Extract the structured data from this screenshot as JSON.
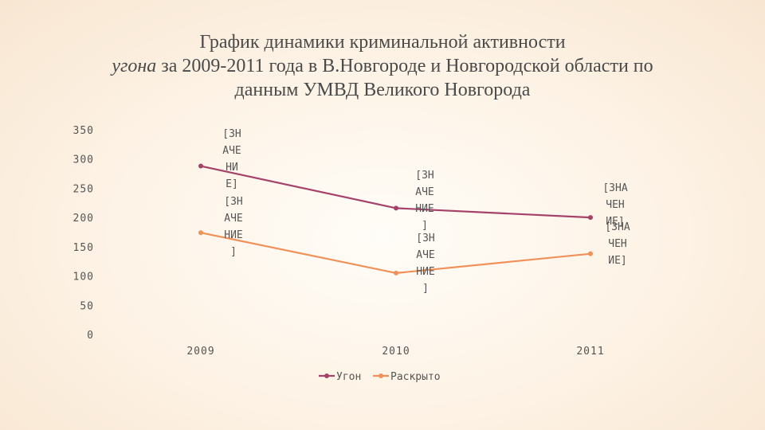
{
  "title": {
    "line1": "График динамики криминальной активности",
    "line2_italic": "угона",
    "line2_rest": " за 2009-2011 года в В.Новгороде и Новгородской области по",
    "line3": "данным УМВД Великого Новгорода"
  },
  "chart_data": {
    "type": "line",
    "categories": [
      "2009",
      "2010",
      "2011"
    ],
    "ylim": [
      0,
      350
    ],
    "yticks": [
      0,
      50,
      100,
      150,
      200,
      250,
      300,
      350
    ],
    "xlabel": "",
    "ylabel": "",
    "grid": false,
    "legend": "bottom",
    "series": [
      {
        "name": "Угон",
        "color": "#a4426a",
        "values": [
          288,
          216,
          200
        ],
        "labels": [
          [
            "[ЗН",
            "АЧЕ",
            "НИ",
            "Е]"
          ],
          [
            "[ЗН",
            "АЧЕ",
            "НИЕ",
            "]"
          ],
          [
            "[ЗНА",
            "ЧЕН",
            "ИЕ]"
          ]
        ]
      },
      {
        "name": "Раскрыто",
        "color": "#f0915a",
        "values": [
          174,
          105,
          138
        ],
        "labels": [
          [
            "[ЗН",
            "АЧЕ",
            "НИЕ",
            "]"
          ],
          [
            "[ЗН",
            "АЧЕ",
            "НИЕ",
            "]"
          ],
          [
            "[ЗНА",
            "ЧЕН",
            "ИЕ]"
          ]
        ]
      }
    ]
  }
}
